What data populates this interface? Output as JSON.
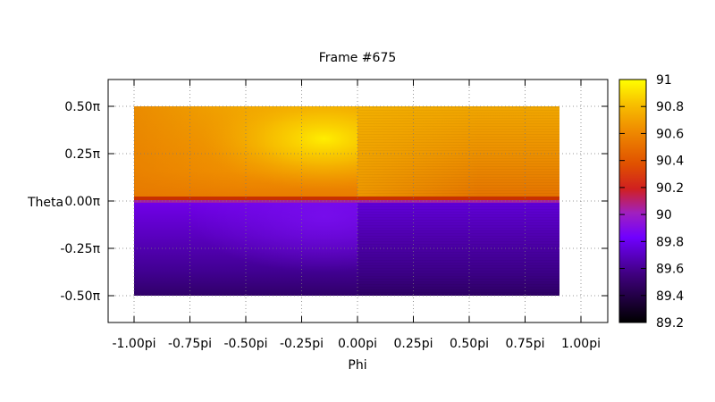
{
  "chart_data": {
    "type": "heatmap",
    "title": "Frame #675",
    "xlabel": "Phi",
    "ylabel": "Theta",
    "xlim": [
      -1.0,
      0.9
    ],
    "ylim": [
      -0.5,
      0.5
    ],
    "x_ticks": [
      "-1.00pi",
      "-0.75pi",
      "-0.50pi",
      "-0.25pi",
      "0.00pi",
      "0.25pi",
      "0.50pi",
      "0.75pi",
      "1.00pi"
    ],
    "y_ticks": [
      "0.50π",
      "0.25π",
      "0.00π",
      "-0.25π",
      "-0.50π"
    ],
    "colorbar": {
      "min": 89.2,
      "max": 91.0,
      "ticks": [
        "91",
        "90.8",
        "90.6",
        "90.4",
        "90.2",
        "90",
        "89.8",
        "89.6",
        "89.4",
        "89.2"
      ]
    },
    "grid": true,
    "palette": [
      "#000000",
      "#7000ff",
      "#ff2020",
      "#ffa000",
      "#ffff00"
    ],
    "regions": [
      {
        "phi": [
          -1.0,
          0.0
        ],
        "theta": [
          0.0,
          0.5
        ],
        "value_range": [
          90.7,
          91.0
        ],
        "peak_phi": -0.15,
        "peak_theta": 0.35
      },
      {
        "phi": [
          0.0,
          0.9
        ],
        "theta": [
          0.0,
          0.5
        ],
        "value_range": [
          90.6,
          90.8
        ]
      },
      {
        "phi": [
          -1.0,
          0.0
        ],
        "theta": [
          -0.5,
          0.0
        ],
        "value_range": [
          89.3,
          89.6
        ]
      },
      {
        "phi": [
          0.0,
          0.9
        ],
        "theta": [
          -0.5,
          0.0
        ],
        "value_range": [
          89.3,
          89.55
        ]
      }
    ]
  }
}
